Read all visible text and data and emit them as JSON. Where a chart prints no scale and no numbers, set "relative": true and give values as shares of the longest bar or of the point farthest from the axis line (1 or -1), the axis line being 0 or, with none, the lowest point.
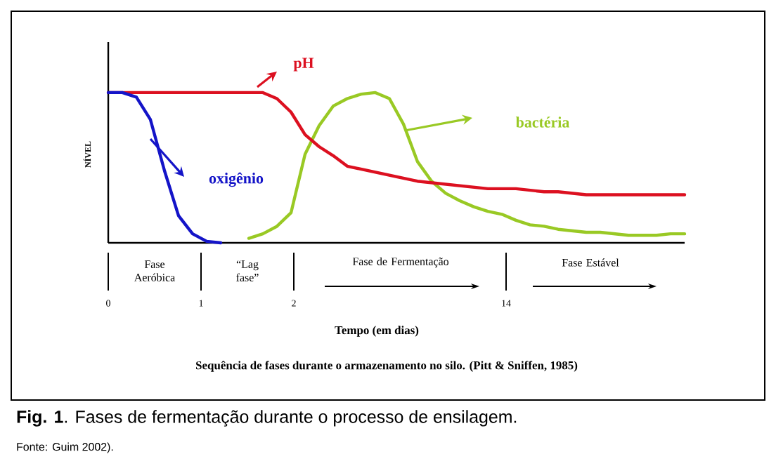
{
  "chart_data": {
    "type": "line",
    "relative": true,
    "marker": "none",
    "line_style": "solid",
    "ylabel": "NÍVEL",
    "categories": [
      null,
      null,
      null,
      null,
      null,
      null,
      null,
      null,
      null,
      null,
      null,
      null,
      null,
      null,
      null,
      null,
      null,
      null,
      null,
      null,
      null,
      null,
      null,
      null,
      null,
      null,
      null,
      null,
      null,
      null,
      null,
      null,
      null,
      null,
      null,
      null,
      null,
      null,
      null,
      null,
      null,
      null
    ],
    "series": [
      {
        "name": "oxigênio",
        "color": "#1414c8",
        "values": [
          1,
          1,
          0.97,
          0.82,
          0.48,
          0.18,
          0.06,
          0.01,
          0,
          null,
          null,
          null,
          null,
          null,
          null,
          null,
          null,
          null,
          null,
          null,
          null,
          null,
          null,
          null,
          null,
          null,
          null,
          null,
          null,
          null,
          null,
          null,
          null,
          null,
          null,
          null,
          null,
          null,
          null,
          null,
          null,
          null
        ]
      },
      {
        "name": "pH",
        "color": "#dc1020",
        "values": [
          1,
          1,
          1,
          1,
          1,
          1,
          1,
          1,
          1,
          1,
          1,
          1,
          0.96,
          0.87,
          0.72,
          0.64,
          0.58,
          0.51,
          0.49,
          0.47,
          0.45,
          0.43,
          0.41,
          0.4,
          0.39,
          0.38,
          0.37,
          0.36,
          0.36,
          0.36,
          0.35,
          0.34,
          0.34,
          0.33,
          0.32,
          0.32,
          0.32,
          0.32,
          0.32,
          0.32,
          0.32,
          0.32
        ]
      },
      {
        "name": "bactéria",
        "color": "#99c924",
        "values": [
          null,
          null,
          null,
          null,
          null,
          null,
          null,
          null,
          null,
          null,
          0.03,
          0.06,
          0.11,
          0.2,
          0.59,
          0.78,
          0.91,
          0.96,
          0.99,
          1.0,
          0.96,
          0.79,
          0.54,
          0.41,
          0.33,
          0.28,
          0.24,
          0.21,
          0.19,
          0.15,
          0.12,
          0.11,
          0.09,
          0.08,
          0.07,
          0.07,
          0.06,
          0.05,
          0.05,
          0.05,
          0.06,
          0.06
        ]
      }
    ],
    "annotations": [
      "Fase Aeróbica",
      "“Lag fase”",
      "Fase de Fermentação",
      "Fase Estável",
      "0",
      "1",
      "2",
      "14",
      "Tempo (em dias)",
      "Sequência de fases durante o armazenamento no silo. (Pitt & Sniffen, 1985)",
      "**Fig. 1**. Fases de fermentação durante o processo de ensilagem.",
      "Fonte: Guim 2002)."
    ]
  }
}
